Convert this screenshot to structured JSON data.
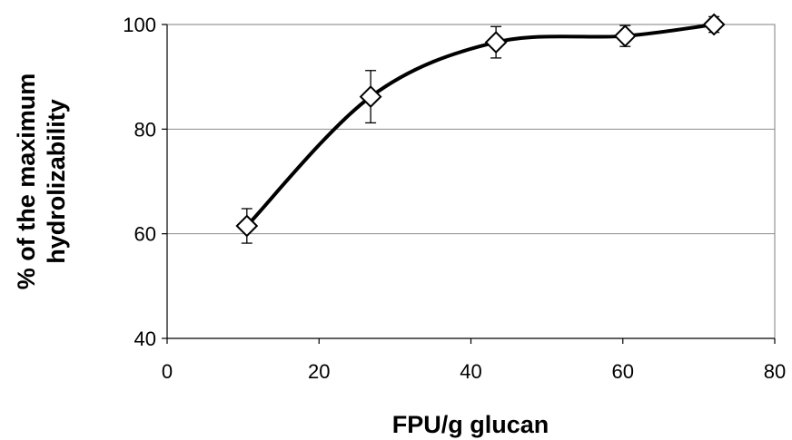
{
  "chart_data": {
    "type": "scatter",
    "title": "",
    "xlabel": "FPU/g glucan",
    "ylabel_lines": [
      "% of the maximum",
      "hydrolizability"
    ],
    "xlim": [
      0,
      80
    ],
    "ylim": [
      40,
      100
    ],
    "x_ticks": [
      "0",
      "20",
      "40",
      "60",
      "80"
    ],
    "y_ticks": [
      "40",
      "60",
      "80",
      "100"
    ],
    "grid": "horizontal",
    "line": "smooth",
    "marker": "diamond-open",
    "color": "#000000",
    "series": [
      {
        "x": [
          10.5,
          26.8,
          43.3,
          60.3,
          72.0
        ],
        "y": [
          61.5,
          86.2,
          96.6,
          97.8,
          100.0
        ],
        "error": [
          3.3,
          5.0,
          3.0,
          2.0,
          1.5
        ]
      }
    ]
  }
}
